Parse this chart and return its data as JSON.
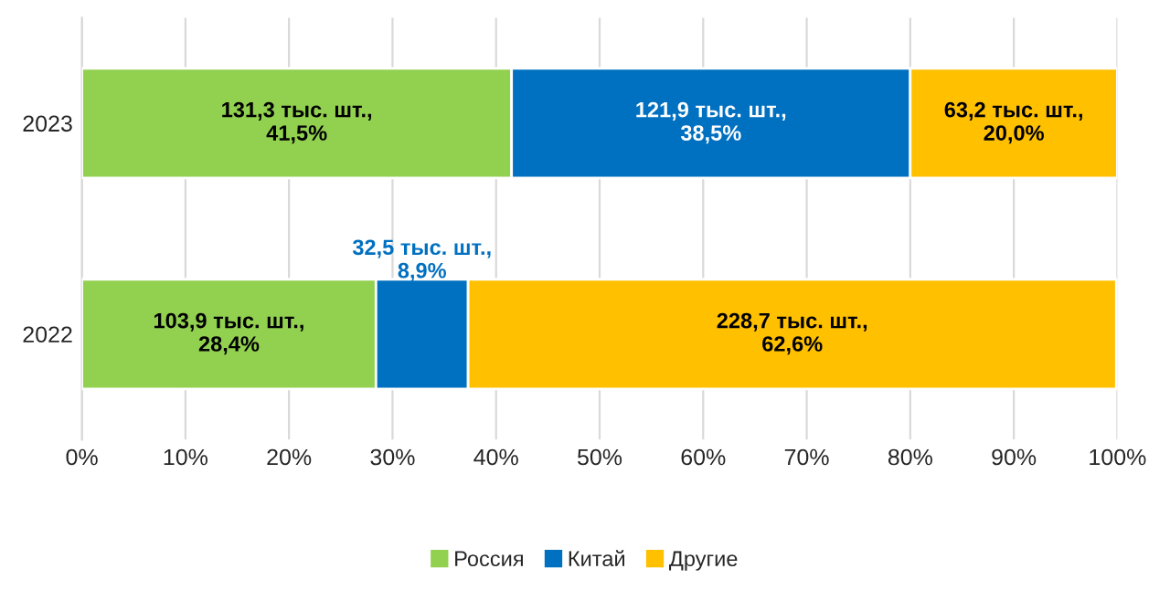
{
  "chart_data": {
    "type": "bar",
    "orientation": "horizontal",
    "stacked": true,
    "categories": [
      "2023",
      "2022"
    ],
    "series": [
      {
        "name": "Россия",
        "color": "#92d050",
        "values": [
          41.5,
          28.4
        ],
        "value_labels": [
          "131,3 тыс. шт.,\n41,5%",
          "103,9 тыс. шт.,\n28,4%"
        ]
      },
      {
        "name": "Китай",
        "color": "#0070c0",
        "values": [
          38.5,
          8.9
        ],
        "value_labels": [
          "121,9 тыс. шт.,\n38,5%",
          "32,5 тыс. шт.,\n8,9%"
        ]
      },
      {
        "name": "Другие",
        "color": "#ffc000",
        "values": [
          20.0,
          62.6
        ],
        "value_labels": [
          "63,2 тыс. шт.,\n20,0%",
          "228,7 тыс. шт.,\n62,6%"
        ]
      }
    ],
    "xlim": [
      0,
      100
    ],
    "xticks": [
      {
        "value": 0,
        "label": "0%"
      },
      {
        "value": 10,
        "label": "10%"
      },
      {
        "value": 20,
        "label": "20%"
      },
      {
        "value": 30,
        "label": "30%"
      },
      {
        "value": 40,
        "label": "40%"
      },
      {
        "value": 50,
        "label": "50%"
      },
      {
        "value": 60,
        "label": "60%"
      },
      {
        "value": 70,
        "label": "70%"
      },
      {
        "value": 80,
        "label": "80%"
      },
      {
        "value": 90,
        "label": "90%"
      },
      {
        "value": 100,
        "label": "100%"
      }
    ],
    "grid": "x",
    "legend": "bottom"
  }
}
